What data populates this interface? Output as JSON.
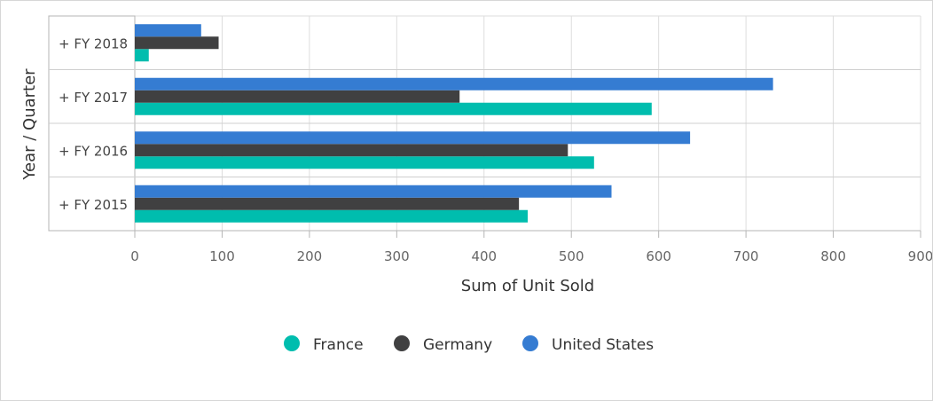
{
  "chart_data": {
    "type": "bar",
    "orientation": "horizontal",
    "categories": [
      "+ FY 2015",
      "+ FY 2016",
      "+ FY 2017",
      "+ FY 2018"
    ],
    "series": [
      {
        "name": "France",
        "color": "#00bdae",
        "values": [
          450,
          526,
          592,
          16
        ]
      },
      {
        "name": "Germany",
        "color": "#404041",
        "values": [
          440,
          496,
          372,
          96
        ]
      },
      {
        "name": "United States",
        "color": "#357cd2",
        "values": [
          546,
          636,
          731,
          76
        ]
      }
    ],
    "xlabel": "Sum of Unit Sold",
    "ylabel": "Year / Quarter",
    "xlim": [
      0,
      900
    ],
    "xticks": [
      "0",
      "100",
      "200",
      "300",
      "400",
      "500",
      "600",
      "700",
      "800",
      "900"
    ],
    "grid": true,
    "legend_position": "bottom"
  }
}
